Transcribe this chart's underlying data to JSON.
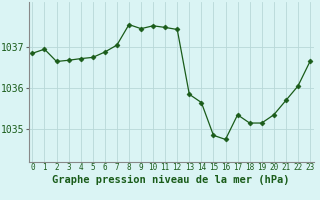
{
  "hours": [
    0,
    1,
    2,
    3,
    4,
    5,
    6,
    7,
    8,
    9,
    10,
    11,
    12,
    13,
    14,
    15,
    16,
    17,
    18,
    19,
    20,
    21,
    22,
    23
  ],
  "pressure": [
    1036.85,
    1036.95,
    1036.65,
    1036.68,
    1036.72,
    1036.75,
    1036.88,
    1037.05,
    1037.55,
    1037.45,
    1037.52,
    1037.48,
    1037.43,
    1035.85,
    1035.65,
    1034.85,
    1034.75,
    1035.35,
    1035.15,
    1035.15,
    1035.35,
    1035.7,
    1036.05,
    1036.65
  ],
  "line_color": "#1a5c1a",
  "marker": "D",
  "marker_size": 2.5,
  "bg_color": "#daf4f4",
  "grid_color": "#b8d8d8",
  "xlabel": "Graphe pression niveau de la mer (hPa)",
  "xlabel_fontsize": 7.5,
  "tick_label_color": "#1a5c1a",
  "x_tick_fontsize": 5.5,
  "y_tick_fontsize": 7,
  "yticks": [
    1035,
    1036,
    1037
  ],
  "ylim": [
    1034.2,
    1038.1
  ],
  "xlim": [
    -0.3,
    23.3
  ]
}
